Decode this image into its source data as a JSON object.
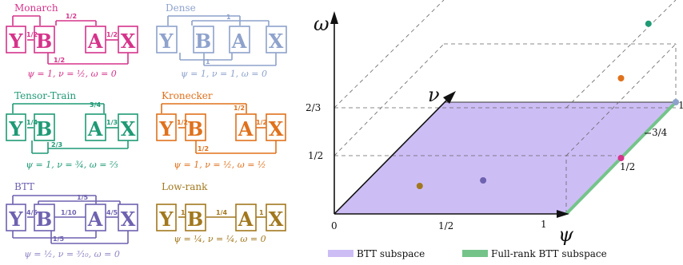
{
  "panels": [
    {
      "id": "monarch",
      "title": "Monarch",
      "color": "#d6338a",
      "boxes": [
        "Y",
        "B",
        "A",
        "X"
      ],
      "caption": "ψ = 1, ν = ½, ω = 0",
      "labels": [
        "1/2",
        "1/2",
        "1/2",
        "1/2"
      ]
    },
    {
      "id": "dense",
      "title": "Dense",
      "color": "#8ea2cc",
      "boxes": [
        "Y",
        "B",
        "A",
        "X"
      ],
      "caption": "ψ = 1, ν = 1, ω = 0",
      "labels": [
        "1",
        "1"
      ]
    },
    {
      "id": "tensor-train",
      "title": "Tensor-Train",
      "color": "#1f9a75",
      "boxes": [
        "Y",
        "B",
        "A",
        "X"
      ],
      "caption": "ψ = 1, ν = ¾, ω = ⅔",
      "labels": [
        "1/4",
        "3/4",
        "1/3",
        "2/3"
      ]
    },
    {
      "id": "kronecker",
      "title": "Kronecker",
      "color": "#e0711c",
      "boxes": [
        "Y",
        "B",
        "A",
        "X"
      ],
      "caption": "ψ = 1, ν = ½, ω = ½",
      "labels": [
        "1/2",
        "1/2",
        "1/2",
        "1/2"
      ]
    },
    {
      "id": "btt",
      "title": "BTT",
      "color": "#6e62b0",
      "boxes": [
        "Y",
        "B",
        "A",
        "X"
      ],
      "caption": "ψ = ½, ν = ³⁄₁₀, ω = 0",
      "labels": [
        "4/5",
        "1/5",
        "1/10",
        "4/5",
        "1/5"
      ]
    },
    {
      "id": "low-rank",
      "title": "Low-rank",
      "color": "#a2781e",
      "boxes": [
        "Y",
        "B",
        "A",
        "X"
      ],
      "caption": "ψ = ¼, ν = ¼, ω = 0",
      "labels": [
        "1",
        "1/4",
        "1"
      ]
    }
  ],
  "plot": {
    "axis_psi": "ψ",
    "axis_nu": "ν",
    "axis_omega": "ω",
    "origin_label": "0",
    "psi_ticks": [
      "1/2",
      "1"
    ],
    "omega_ticks": [
      "2/3",
      "1/2"
    ],
    "edge_labels": [
      "1",
      "3/4",
      "1/2"
    ],
    "region_color": "#cdbdf5",
    "fullrank_color": "#74c48a",
    "points": [
      {
        "name": "dense",
        "psi": 1,
        "nu": 1,
        "omega": 0,
        "color": "#8ea2cc"
      },
      {
        "name": "monarch",
        "psi": 1,
        "nu": 0.5,
        "omega": 0,
        "color": "#d6338a"
      },
      {
        "name": "kronecker",
        "psi": 1,
        "nu": 0.5,
        "omega": 0.5,
        "color": "#e0711c"
      },
      {
        "name": "tensor-train",
        "psi": 1,
        "nu": 0.75,
        "omega": 0.6667,
        "color": "#1f9a75"
      },
      {
        "name": "btt",
        "psi": 0.5,
        "nu": 0.3,
        "omega": 0,
        "color": "#6e62b0"
      },
      {
        "name": "low-rank",
        "psi": 0.25,
        "nu": 0.25,
        "omega": 0,
        "color": "#a2781e"
      }
    ]
  },
  "legend": {
    "items": [
      {
        "label": "BTT subspace",
        "color": "#cdbdf5"
      },
      {
        "label": "Full-rank BTT subspace",
        "color": "#74c48a"
      }
    ]
  }
}
